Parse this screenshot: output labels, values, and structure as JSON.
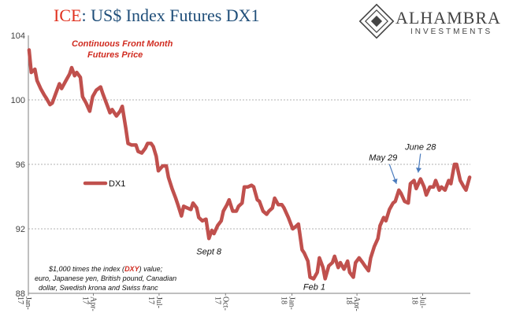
{
  "title": {
    "prefix": "ICE",
    "rest": ": US$ Index Futures DX1"
  },
  "logo": {
    "name": "ALHAMBRA",
    "sub": "INVESTMENTS"
  },
  "subtitle": {
    "line1": "Continuous  Front Month",
    "line2": "Futures Price"
  },
  "footnote": {
    "line1_before": "$1,000 times the index (",
    "line1_highlight": "DXY",
    "line1_after": ") value;",
    "line2": "euro, Japanese yen, British pound, Canadian",
    "line3": "dollar, Swedish krona and Swiss franc"
  },
  "colors": {
    "series": "#c0504d",
    "title_prefix": "#e0301e",
    "title_rest": "#1f4e79",
    "annotation_arrow": "#4a7bbd",
    "gridline": "#b0b0b0"
  },
  "chart_data": {
    "type": "line",
    "title": "ICE: US$ Index Futures DX1",
    "subtitle": "Continuous  Front Month Futures Price",
    "xlabel": "",
    "ylabel": "",
    "ylim": [
      88,
      104
    ],
    "yticks": [
      88,
      92,
      96,
      100,
      104
    ],
    "grid": true,
    "legend_position": "center-left",
    "xticks": [
      {
        "label": "Jan-17",
        "x": "2017-01-01"
      },
      {
        "label": "Apr-17",
        "x": "2017-04-01"
      },
      {
        "label": "Jul-17",
        "x": "2017-07-01"
      },
      {
        "label": "Oct-17",
        "x": "2017-10-01"
      },
      {
        "label": "Jan-18",
        "x": "2018-01-01"
      },
      {
        "label": "Apr-18",
        "x": "2018-04-01"
      },
      {
        "label": "Jul-18",
        "x": "2018-07-01"
      }
    ],
    "xrange": [
      "2017-01-01",
      "2018-09-05"
    ],
    "series": [
      {
        "name": "DX1",
        "points": [
          [
            "2017-01-02",
            103.1
          ],
          [
            "2017-01-05",
            101.7
          ],
          [
            "2017-01-10",
            101.9
          ],
          [
            "2017-01-13",
            101.2
          ],
          [
            "2017-01-18",
            100.7
          ],
          [
            "2017-01-23",
            100.3
          ],
          [
            "2017-01-26",
            100.1
          ],
          [
            "2017-01-31",
            99.7
          ],
          [
            "2017-02-03",
            99.8
          ],
          [
            "2017-02-08",
            100.4
          ],
          [
            "2017-02-13",
            101.0
          ],
          [
            "2017-02-16",
            100.7
          ],
          [
            "2017-02-22",
            101.2
          ],
          [
            "2017-02-27",
            101.6
          ],
          [
            "2017-03-02",
            102.0
          ],
          [
            "2017-03-06",
            101.5
          ],
          [
            "2017-03-09",
            101.7
          ],
          [
            "2017-03-14",
            101.4
          ],
          [
            "2017-03-17",
            100.2
          ],
          [
            "2017-03-22",
            99.8
          ],
          [
            "2017-03-27",
            99.3
          ],
          [
            "2017-03-31",
            100.2
          ],
          [
            "2017-04-05",
            100.6
          ],
          [
            "2017-04-11",
            100.8
          ],
          [
            "2017-04-14",
            100.4
          ],
          [
            "2017-04-19",
            99.8
          ],
          [
            "2017-04-24",
            99.2
          ],
          [
            "2017-04-27",
            99.4
          ],
          [
            "2017-05-03",
            99.0
          ],
          [
            "2017-05-08",
            99.3
          ],
          [
            "2017-05-11",
            99.6
          ],
          [
            "2017-05-16",
            98.2
          ],
          [
            "2017-05-19",
            97.3
          ],
          [
            "2017-05-24",
            97.2
          ],
          [
            "2017-05-30",
            97.2
          ],
          [
            "2017-06-02",
            96.8
          ],
          [
            "2017-06-07",
            96.7
          ],
          [
            "2017-06-12",
            97.0
          ],
          [
            "2017-06-15",
            97.3
          ],
          [
            "2017-06-20",
            97.3
          ],
          [
            "2017-06-23",
            97.1
          ],
          [
            "2017-06-27",
            96.5
          ],
          [
            "2017-06-30",
            95.6
          ],
          [
            "2017-07-06",
            95.9
          ],
          [
            "2017-07-11",
            95.9
          ],
          [
            "2017-07-14",
            95.2
          ],
          [
            "2017-07-19",
            94.5
          ],
          [
            "2017-07-24",
            93.9
          ],
          [
            "2017-07-27",
            93.5
          ],
          [
            "2017-08-01",
            92.8
          ],
          [
            "2017-08-04",
            93.4
          ],
          [
            "2017-08-09",
            93.3
          ],
          [
            "2017-08-14",
            93.2
          ],
          [
            "2017-08-17",
            93.6
          ],
          [
            "2017-08-22",
            93.3
          ],
          [
            "2017-08-25",
            92.7
          ],
          [
            "2017-08-30",
            92.5
          ],
          [
            "2017-09-04",
            92.6
          ],
          [
            "2017-09-08",
            91.4
          ],
          [
            "2017-09-12",
            91.9
          ],
          [
            "2017-09-15",
            91.7
          ],
          [
            "2017-09-20",
            92.2
          ],
          [
            "2017-09-25",
            92.5
          ],
          [
            "2017-09-28",
            93.1
          ],
          [
            "2017-10-03",
            93.5
          ],
          [
            "2017-10-06",
            93.8
          ],
          [
            "2017-10-11",
            93.1
          ],
          [
            "2017-10-16",
            93.1
          ],
          [
            "2017-10-19",
            93.4
          ],
          [
            "2017-10-24",
            93.6
          ],
          [
            "2017-10-27",
            94.6
          ],
          [
            "2017-11-01",
            94.6
          ],
          [
            "2017-11-06",
            94.7
          ],
          [
            "2017-11-09",
            94.6
          ],
          [
            "2017-11-14",
            93.8
          ],
          [
            "2017-11-17",
            93.7
          ],
          [
            "2017-11-22",
            93.1
          ],
          [
            "2017-11-27",
            92.9
          ],
          [
            "2017-11-30",
            93.1
          ],
          [
            "2017-12-05",
            93.3
          ],
          [
            "2017-12-08",
            93.9
          ],
          [
            "2017-12-13",
            93.5
          ],
          [
            "2017-12-18",
            93.5
          ],
          [
            "2017-12-21",
            93.3
          ],
          [
            "2017-12-27",
            92.7
          ],
          [
            "2018-01-02",
            92.0
          ],
          [
            "2018-01-05",
            92.1
          ],
          [
            "2018-01-10",
            92.3
          ],
          [
            "2018-01-15",
            90.7
          ],
          [
            "2018-01-18",
            90.5
          ],
          [
            "2018-01-23",
            90.0
          ],
          [
            "2018-01-26",
            89.0
          ],
          [
            "2018-01-31",
            88.9
          ],
          [
            "2018-02-05",
            89.3
          ],
          [
            "2018-02-08",
            90.2
          ],
          [
            "2018-02-13",
            89.6
          ],
          [
            "2018-02-16",
            88.9
          ],
          [
            "2018-02-21",
            89.7
          ],
          [
            "2018-02-26",
            89.9
          ],
          [
            "2018-03-01",
            90.3
          ],
          [
            "2018-03-06",
            89.6
          ],
          [
            "2018-03-09",
            89.9
          ],
          [
            "2018-03-14",
            89.5
          ],
          [
            "2018-03-19",
            90.0
          ],
          [
            "2018-03-22",
            89.3
          ],
          [
            "2018-03-27",
            89.0
          ],
          [
            "2018-03-30",
            89.9
          ],
          [
            "2018-04-04",
            90.2
          ],
          [
            "2018-04-09",
            89.9
          ],
          [
            "2018-04-12",
            89.7
          ],
          [
            "2018-04-17",
            89.4
          ],
          [
            "2018-04-20",
            90.2
          ],
          [
            "2018-04-25",
            90.9
          ],
          [
            "2018-04-30",
            91.4
          ],
          [
            "2018-05-03",
            92.2
          ],
          [
            "2018-05-08",
            92.7
          ],
          [
            "2018-05-11",
            92.5
          ],
          [
            "2018-05-16",
            93.2
          ],
          [
            "2018-05-21",
            93.6
          ],
          [
            "2018-05-24",
            93.7
          ],
          [
            "2018-05-29",
            94.4
          ],
          [
            "2018-06-01",
            94.2
          ],
          [
            "2018-06-06",
            93.7
          ],
          [
            "2018-06-11",
            93.6
          ],
          [
            "2018-06-14",
            94.8
          ],
          [
            "2018-06-19",
            95.0
          ],
          [
            "2018-06-22",
            94.5
          ],
          [
            "2018-06-28",
            95.1
          ],
          [
            "2018-07-03",
            94.6
          ],
          [
            "2018-07-06",
            94.1
          ],
          [
            "2018-07-11",
            94.6
          ],
          [
            "2018-07-16",
            94.6
          ],
          [
            "2018-07-19",
            95.0
          ],
          [
            "2018-07-24",
            94.4
          ],
          [
            "2018-07-27",
            94.6
          ],
          [
            "2018-08-01",
            94.4
          ],
          [
            "2018-08-06",
            95.0
          ],
          [
            "2018-08-09",
            94.8
          ],
          [
            "2018-08-14",
            96.0
          ],
          [
            "2018-08-17",
            96.0
          ],
          [
            "2018-08-22",
            95.0
          ],
          [
            "2018-08-27",
            94.6
          ],
          [
            "2018-08-30",
            94.4
          ],
          [
            "2018-09-04",
            95.2
          ]
        ]
      }
    ],
    "annotations": [
      {
        "text": "Sept 8",
        "x": "2017-09-08",
        "y": 91.4,
        "arrow": false
      },
      {
        "text": "Feb 1",
        "x": "2018-02-01",
        "y": 88.9,
        "arrow": false
      },
      {
        "text": "May 29",
        "x": "2018-05-29",
        "y": 94.4,
        "arrow": true
      },
      {
        "text": "June 28",
        "x": "2018-06-28",
        "y": 95.1,
        "arrow": true
      }
    ]
  }
}
